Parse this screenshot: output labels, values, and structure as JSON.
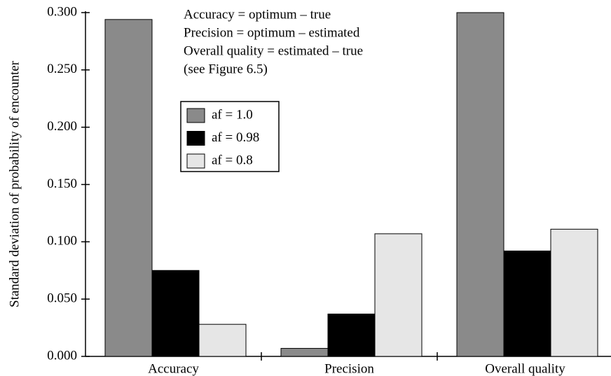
{
  "chart_data": {
    "type": "bar",
    "y_label": "Standard deviation of probability of encounter",
    "annotations": [
      "Accuracy = optimum – true",
      "Precision = optimum – estimated",
      "Overall quality = estimated – true",
      "(see Figure 6.5)"
    ],
    "categories": [
      "Accuracy",
      "Precision",
      "Overall quality"
    ],
    "series": [
      {
        "name": "af = 1.0",
        "color": "#8a8a8a",
        "values": [
          0.294,
          0.007,
          0.3
        ]
      },
      {
        "name": "af = 0.98",
        "color": "#000000",
        "values": [
          0.075,
          0.037,
          0.092
        ]
      },
      {
        "name": "af = 0.8",
        "color": "#e6e6e6",
        "values": [
          0.028,
          0.107,
          0.111
        ]
      }
    ],
    "ylim": [
      0,
      0.3
    ],
    "yticks": [
      {
        "value": 0,
        "label": "0.000"
      },
      {
        "value": 0.05,
        "label": "0.050"
      },
      {
        "value": 0.1,
        "label": "0.100"
      },
      {
        "value": 0.15,
        "label": "0.150"
      },
      {
        "value": 0.2,
        "label": "0.200"
      },
      {
        "value": 0.25,
        "label": "0.250"
      },
      {
        "value": 0.3,
        "label": "0.300"
      }
    ],
    "grid": false
  }
}
